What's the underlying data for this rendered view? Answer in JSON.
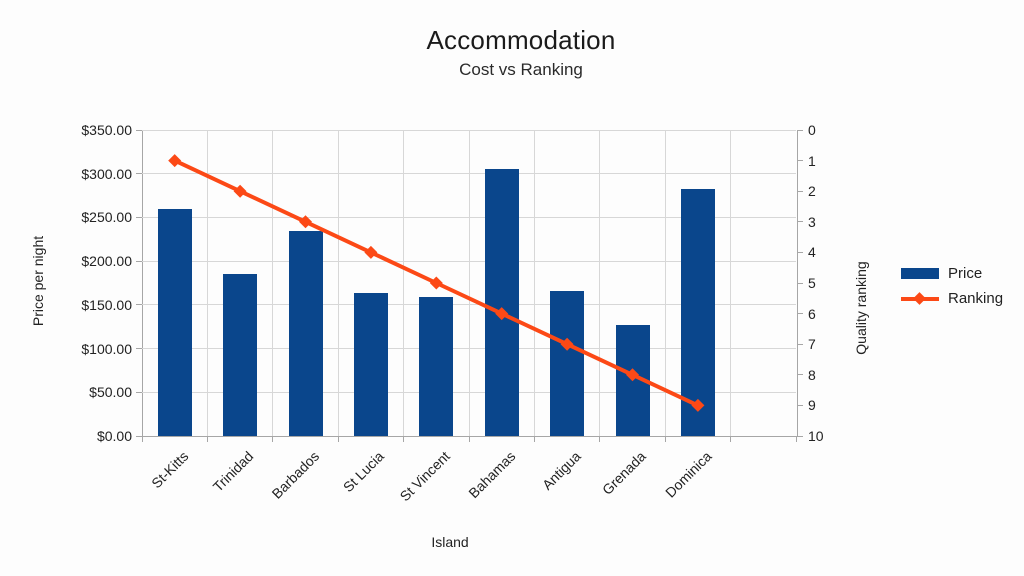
{
  "title": "Accommodation",
  "subtitle": "Cost vs Ranking",
  "colors": {
    "bar": "#0a468c",
    "line": "#fc4916",
    "grid": "#d7d7d7",
    "axis": "#a6a6a6",
    "text": "#222222"
  },
  "legend": {
    "position": "right",
    "items": [
      {
        "label": "Price",
        "swatch": "bar-swatch"
      },
      {
        "label": "Ranking",
        "swatch": "line-diamond-swatch"
      }
    ]
  },
  "chart_data": {
    "type": "bar+line combo",
    "title": "Accommodation",
    "subtitle": "Cost vs Ranking",
    "xlabel": "Island",
    "ylabel_left": "Price per night",
    "ylabel_right": "Quality ranking",
    "categories": [
      "St-Kitts",
      "Trinidad",
      "Barbados",
      "St Lucia",
      "St Vincent",
      "Bahamas",
      "Antigua",
      "Grenada",
      "Dominica"
    ],
    "series": [
      {
        "name": "Price",
        "type": "bar",
        "axis": "left",
        "values": [
          260,
          185,
          234,
          164,
          159,
          305,
          166,
          127,
          283
        ]
      },
      {
        "name": "Ranking",
        "type": "line",
        "axis": "right",
        "values": [
          1,
          2,
          3,
          4,
          5,
          6,
          7,
          8,
          9
        ]
      }
    ],
    "ylim_left": [
      0,
      350
    ],
    "left_tick_step": 50,
    "left_ticks": [
      "$350.00",
      "$300.00",
      "$250.00",
      "$200.00",
      "$150.00",
      "$100.00",
      "$50.00",
      "$0.00"
    ],
    "ylim_right": [
      0,
      10
    ],
    "right_axis_inverted": true,
    "right_ticks": [
      "0",
      "1",
      "2",
      "3",
      "4",
      "5",
      "6",
      "7",
      "8",
      "9",
      "10"
    ],
    "grid": true,
    "x_slots_total": 10,
    "legend_position": "right"
  }
}
